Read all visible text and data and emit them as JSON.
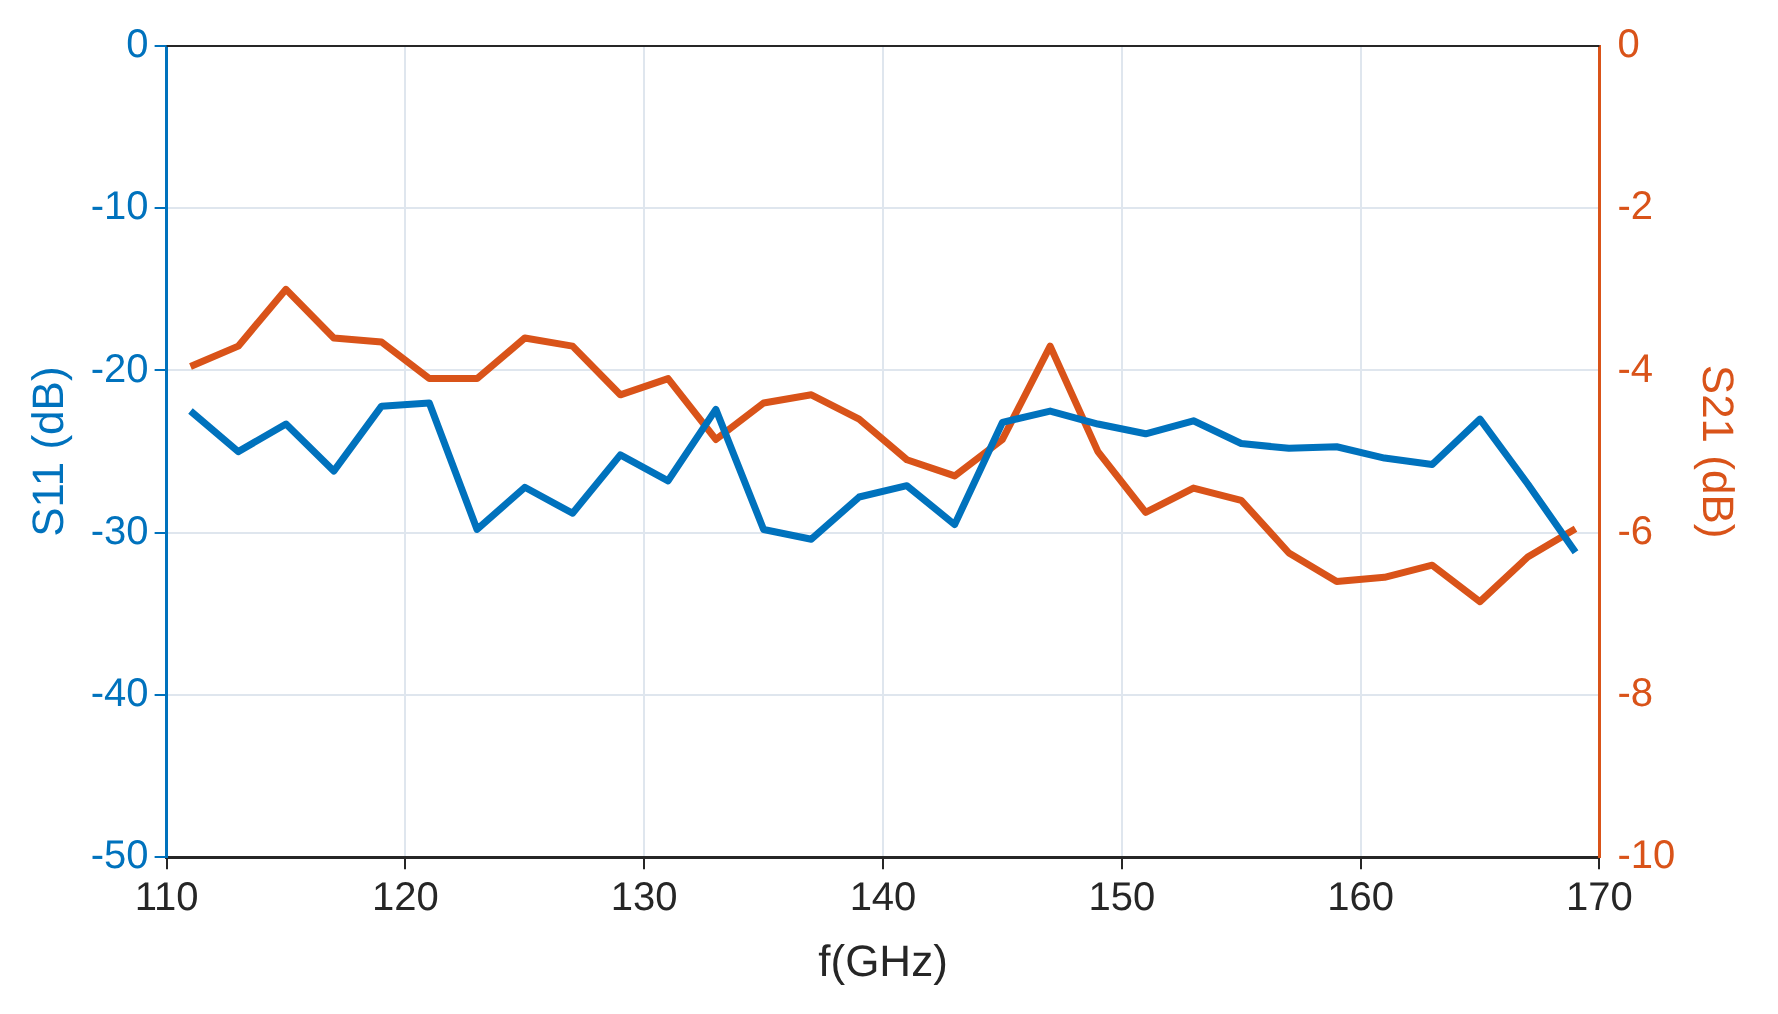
{
  "chart_data": {
    "type": "line",
    "xlabel": "f(GHz)",
    "ylabel": "S11 (dB)",
    "y2label": "S21 (dB)",
    "x": [
      111,
      113,
      115,
      117,
      119,
      121,
      123,
      125,
      127,
      129,
      131,
      133,
      135,
      137,
      139,
      141,
      143,
      145,
      147,
      149,
      151,
      153,
      155,
      157,
      159,
      161,
      163,
      165,
      167,
      169
    ],
    "series": [
      {
        "color": "#0072bd",
        "values": [
          -22.5,
          -25,
          -23.3,
          -26.2,
          -22.2,
          -22,
          -29.8,
          -27.2,
          -28.8,
          -25.2,
          -26.8,
          -22.4,
          -29.8,
          -30.4,
          -27.8,
          -27.1,
          -29.5,
          -23.2,
          -22.5,
          -23.3,
          -23.9,
          -23.1,
          -24.5,
          -24.8,
          -24.7,
          -25.4,
          -25.8,
          -23,
          -27,
          -31.2
        ]
      },
      {
        "color": "#d95319",
        "axis": "y2",
        "values": [
          -3.95,
          -3.7,
          -3.0,
          -3.6,
          -3.65,
          -4.1,
          -4.1,
          -3.6,
          -3.7,
          -4.3,
          -4.1,
          -4.85,
          -4.4,
          -4.3,
          -4.6,
          -5.1,
          -5.3,
          -4.85,
          -3.7,
          -5.0,
          -5.75,
          -5.45,
          -5.6,
          -6.25,
          -6.6,
          -6.55,
          -6.4,
          -6.85,
          -6.3,
          -5.95
        ]
      }
    ],
    "xlim": [
      110,
      170
    ],
    "xticks": [
      110,
      120,
      130,
      140,
      150,
      160,
      170
    ],
    "ylim": [
      -50,
      0
    ],
    "yticks": [
      -50,
      -40,
      -30,
      -20,
      -10,
      0
    ],
    "y2lim": [
      -10,
      0
    ],
    "y2ticks": [
      -10,
      -8,
      -6,
      -4,
      -2,
      0
    ],
    "grid": true,
    "legend": false,
    "marker": "none",
    "line_style": "solid"
  }
}
